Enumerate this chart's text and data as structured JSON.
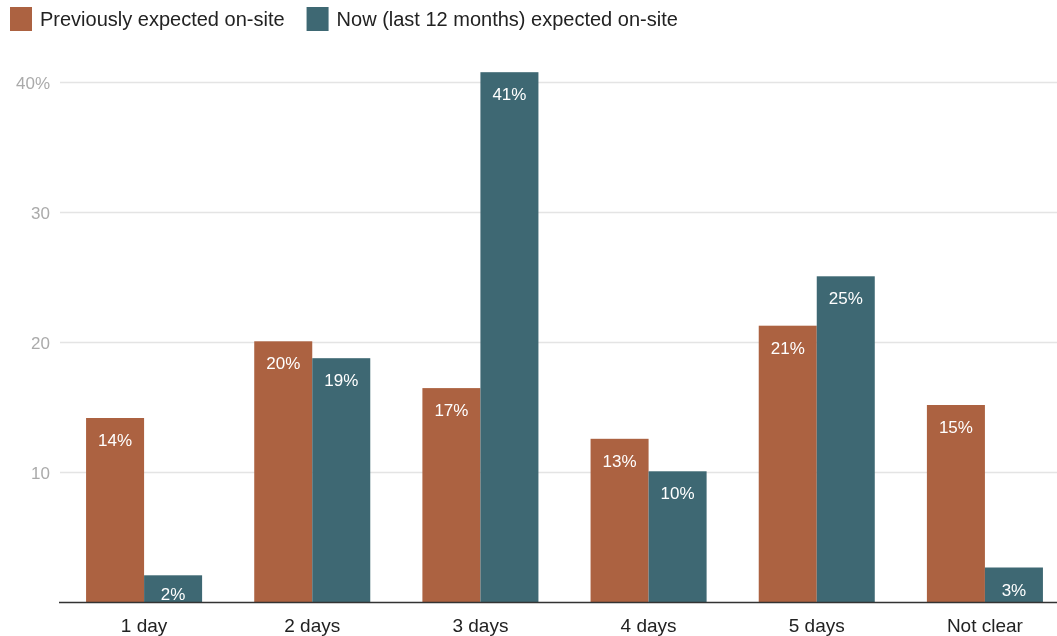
{
  "chart_data": {
    "type": "bar",
    "categories": [
      "1 day",
      "2 days",
      "3 days",
      "4 days",
      "5 days",
      "Not clear"
    ],
    "series": [
      {
        "name": "Previously expected on-site",
        "color": "#ac6241",
        "values": [
          14.2,
          20.1,
          16.5,
          12.6,
          21.3,
          15.2
        ],
        "value_labels": [
          "14%",
          "20%",
          "17%",
          "13%",
          "21%",
          "15%"
        ]
      },
      {
        "name": "Now (last 12 months) expected on-site",
        "color": "#3e6873",
        "values": [
          2.1,
          18.8,
          40.8,
          10.1,
          25.1,
          2.7
        ],
        "value_labels": [
          "2%",
          "19%",
          "41%",
          "10%",
          "25%",
          "3%"
        ]
      }
    ],
    "ylim": [
      0,
      40.8
    ],
    "yticks": [
      10,
      20,
      30,
      {
        "value": 40,
        "label": "40%"
      }
    ],
    "grid": "y",
    "legend": "top left"
  }
}
